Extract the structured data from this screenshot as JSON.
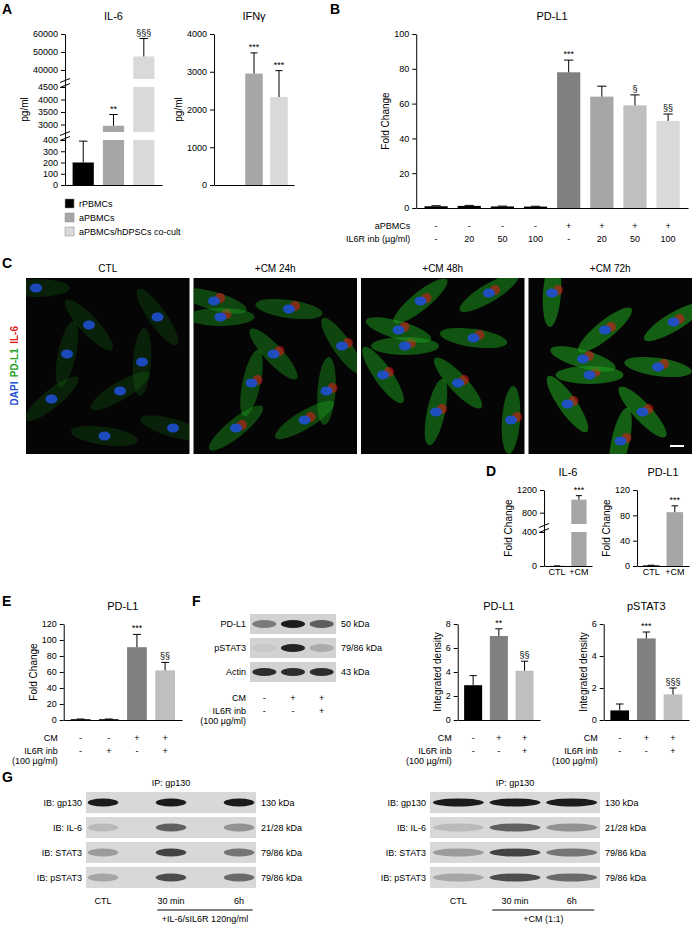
{
  "chart_data": [
    {
      "type": "bar",
      "title": "IL-6",
      "y_label": "pg/ml",
      "categories": [
        "rPBMCs",
        "aPBMCs",
        "aPBMCs/hDPSCs co-cult"
      ],
      "values": [
        200,
        2950,
        47500
      ],
      "errors": [
        190,
        450,
        10000
      ],
      "annotations": [
        null,
        "**",
        "§§§"
      ],
      "colors": [
        "#000000",
        "#a6a6a6",
        "#d9d9d9"
      ],
      "ylim": [
        0,
        60000
      ],
      "yticks": [
        0,
        100,
        200,
        300,
        400,
        3000,
        3500,
        4000,
        4500,
        40000,
        50000,
        60000
      ],
      "y_breaks": [
        [
          400,
          2700
        ],
        [
          4500,
          35000
        ]
      ],
      "tick_labels": "y",
      "legend": "bottom"
    },
    {
      "type": "bar",
      "title": "IFNγ",
      "y_label": "pg/ml",
      "categories": [
        null,
        null,
        null
      ],
      "values": [
        null,
        2950,
        2330
      ],
      "errors": [
        null,
        550,
        700
      ],
      "annotations": [
        null,
        "***",
        "***"
      ],
      "colors": [
        "#000000",
        "#a6a6a6",
        "#d9d9d9"
      ],
      "ylim": [
        0,
        4000
      ],
      "yticks": [
        0,
        1000,
        2000,
        3000,
        4000
      ]
    },
    {
      "type": "bar",
      "title": "PD-L1",
      "y_label": "Fold Change",
      "categories": [
        null,
        null,
        null,
        null,
        null,
        null,
        null,
        null
      ],
      "values": [
        1,
        1.2,
        0.9,
        0.8,
        78,
        64,
        59,
        50
      ],
      "errors": [
        0.3,
        0.3,
        0.2,
        0.2,
        7,
        6,
        6,
        4
      ],
      "annotations": [
        null,
        null,
        null,
        null,
        "***",
        null,
        "§",
        "§§"
      ],
      "colors": [
        "#000000",
        "#000000",
        "#000000",
        "#000000",
        "#808080",
        "#a6a6a6",
        "#bfbfbf",
        "#d9d9d9"
      ],
      "ylim": [
        0,
        100
      ],
      "yticks": [
        0,
        20,
        40,
        60,
        80,
        100
      ],
      "conditions": [
        {
          "label": "aPBMCs",
          "values": [
            "-",
            "-",
            "-",
            "-",
            "+",
            "+",
            "+",
            "+"
          ]
        },
        {
          "label": "IL6R inb (µg/ml)",
          "values": [
            "-",
            "20",
            "50",
            "100",
            "-",
            "20",
            "50",
            "100"
          ]
        }
      ]
    },
    {
      "type": "bar",
      "title": "IL-6",
      "y_label": "Fold Change",
      "categories": [
        "CTL",
        "+CM"
      ],
      "values": [
        1,
        1030
      ],
      "errors": [
        0.2,
        70
      ],
      "annotations": [
        null,
        "***"
      ],
      "colors": [
        "#000000",
        "#a6a6a6"
      ],
      "ylim": [
        0,
        1200
      ],
      "yticks": [
        0,
        400,
        800,
        1200
      ],
      "y_breaks": [
        [
          400,
          600
        ]
      ]
    },
    {
      "type": "bar",
      "title": "PD-L1",
      "y_label": "Fold Change",
      "categories": [
        "CTL",
        "+CM"
      ],
      "values": [
        1,
        85
      ],
      "errors": [
        0.2,
        10
      ],
      "annotations": [
        null,
        "***"
      ],
      "colors": [
        "#000000",
        "#a6a6a6"
      ],
      "ylim": [
        0,
        120
      ],
      "yticks": [
        0,
        40,
        80,
        120
      ]
    },
    {
      "type": "bar",
      "title": "PD-L1",
      "y_label": "Fold Change",
      "categories": [
        null,
        null,
        null,
        null
      ],
      "values": [
        1,
        1,
        91,
        62
      ],
      "errors": [
        0.2,
        0.2,
        16,
        10
      ],
      "annotations": [
        null,
        null,
        "***",
        "§§"
      ],
      "colors": [
        "#000000",
        "#000000",
        "#808080",
        "#bfbfbf"
      ],
      "ylim": [
        0,
        120
      ],
      "yticks": [
        0,
        20,
        40,
        60,
        80,
        100,
        120
      ],
      "conditions": [
        {
          "label": "CM",
          "values": [
            "-",
            "-",
            "+",
            "+"
          ]
        },
        {
          "label": [
            "IL6R inb",
            "(100 µg/ml)"
          ],
          "values": [
            "-",
            "+",
            "-",
            "+"
          ]
        }
      ]
    },
    {
      "type": "bar",
      "title": "PD-L1",
      "y_label": "Integrated density",
      "categories": [
        null,
        null,
        null
      ],
      "values": [
        2.9,
        7.0,
        4.1
      ],
      "errors": [
        0.8,
        0.6,
        0.8
      ],
      "annotations": [
        null,
        "**",
        "§§"
      ],
      "colors": [
        "#000000",
        "#808080",
        "#bfbfbf"
      ],
      "ylim": [
        0,
        8
      ],
      "yticks": [
        0,
        2,
        4,
        6,
        8
      ],
      "conditions": [
        {
          "label": "CM",
          "values": [
            "-",
            "+",
            "+"
          ]
        },
        {
          "label": [
            "IL6R inb",
            "(100 µg/ml)"
          ],
          "values": [
            "-",
            "-",
            "+"
          ]
        }
      ]
    },
    {
      "type": "bar",
      "title": "pSTAT3",
      "y_label": "Integrated density",
      "categories": [
        null,
        null,
        null
      ],
      "values": [
        0.6,
        5.1,
        1.6
      ],
      "errors": [
        0.4,
        0.4,
        0.4
      ],
      "annotations": [
        null,
        "***",
        "§§§"
      ],
      "colors": [
        "#000000",
        "#808080",
        "#bfbfbf"
      ],
      "ylim": [
        0,
        6
      ],
      "yticks": [
        0,
        2,
        4,
        6
      ],
      "conditions": [
        {
          "label": "CM",
          "values": [
            "-",
            "+",
            "+"
          ]
        },
        {
          "label": [
            "IL6R inb",
            "(100 µg/ml)"
          ],
          "values": [
            "-",
            "-",
            "+"
          ]
        }
      ]
    }
  ],
  "panel_letters": [
    "A",
    "B",
    "C",
    "D",
    "E",
    "F",
    "G"
  ],
  "microscopy": {
    "stains": [
      "DAPI",
      "PD-L1",
      "IL-6"
    ],
    "colors": [
      "#1f4fd1",
      "#1e9e1e",
      "#e01b1b"
    ],
    "images": [
      "CTL",
      "+CM 24h",
      "+CM 48h",
      "+CM 72h"
    ]
  },
  "blot": {
    "rows": [
      {
        "label": "PD-L1",
        "kda": "50 kDa"
      },
      {
        "label": "pSTAT3",
        "kda": "79/86 kDa"
      },
      {
        "label": "Actin",
        "kda": "43 kDa"
      }
    ],
    "conditions": [
      {
        "label": "CM",
        "values": [
          "-",
          "+",
          "+"
        ]
      },
      {
        "label": [
          "IL6R inb",
          "(100 µg/ml)"
        ],
        "values": [
          "-",
          "-",
          "+"
        ]
      }
    ]
  },
  "co_ip": [
    {
      "ip": "IP: gp130",
      "rows": [
        {
          "label": "IB: gp130",
          "kda": "130 kDa"
        },
        {
          "label": "IB: IL-6",
          "kda": "21/28 kDa"
        },
        {
          "label": "IB: STAT3",
          "kda": "79/86 kDa"
        },
        {
          "label": "IB: pSTAT3",
          "kda": "79/86 kDa"
        }
      ],
      "lanes": [
        "CTL",
        "30 min",
        "6h"
      ],
      "treatment": "+IL-6/sIL6R 120ng/ml"
    },
    {
      "ip": "IP: gp130",
      "rows": [
        {
          "label": "IB: gp130",
          "kda": "130 kDa"
        },
        {
          "label": "IB: IL-6",
          "kda": "21/28 kDa"
        },
        {
          "label": "IB: STAT3",
          "kda": "79/86 kDa"
        },
        {
          "label": "IB: pSTAT3",
          "kda": "79/86 kDa"
        }
      ],
      "lanes": [
        "CTL",
        "30 min",
        "6h"
      ],
      "treatment": "+CM (1:1)"
    }
  ]
}
